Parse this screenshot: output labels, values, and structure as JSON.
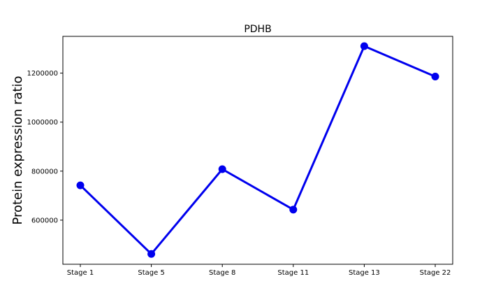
{
  "chart_data": {
    "type": "line",
    "title": "PDHB",
    "xlabel": "",
    "ylabel": "Protein expression ratio",
    "categories": [
      "Stage 1",
      "Stage 5",
      "Stage 8",
      "Stage 11",
      "Stage 13",
      "Stage 22"
    ],
    "series": [
      {
        "values": [
          742000,
          462000,
          808000,
          643000,
          1310000,
          1186000
        ],
        "color": "#0000ee"
      }
    ],
    "ylim": [
      420000,
      1350000
    ],
    "yticks": [
      600000,
      800000,
      1000000,
      1200000
    ],
    "ytick_labels": [
      "600000",
      "800000",
      "1000000",
      "1200000"
    ],
    "grid": false,
    "legend": "none"
  }
}
